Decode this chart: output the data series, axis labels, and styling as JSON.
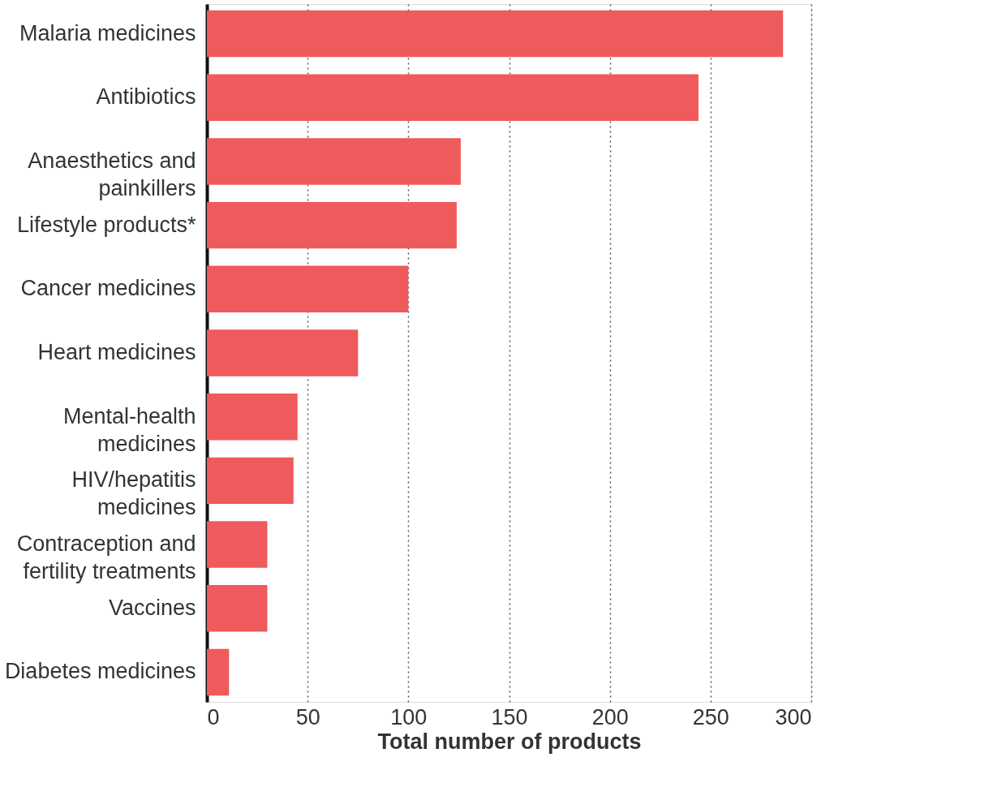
{
  "chart_data": {
    "type": "bar",
    "orientation": "horizontal",
    "xlabel": "Total number of products",
    "categories": [
      "Malaria medicines",
      "Antibiotics",
      "Anaesthetics and painkillers",
      "Lifestyle products*",
      "Cancer medicines",
      "Heart medicines",
      "Mental-health medicines",
      "HIV/hepatitis medicines",
      "Contraception and fertility treatments",
      "Vaccines",
      "Diabetes medicines"
    ],
    "values": [
      286,
      244,
      126,
      124,
      100,
      75,
      45,
      43,
      30,
      30,
      11
    ],
    "color": "#ef5a5c",
    "xlim": [
      0,
      300
    ],
    "xticks": [
      0,
      50,
      100,
      150,
      200,
      250,
      300
    ],
    "grid": "x"
  }
}
